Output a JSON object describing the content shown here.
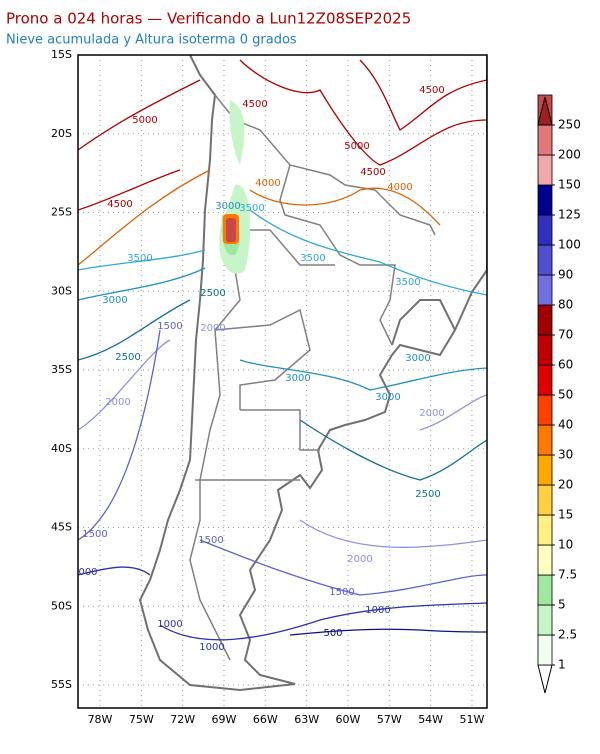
{
  "header": {
    "title": "Prono a 024 horas — Verificando a Lun12Z08SEP2025",
    "subtitle": "Nieve acumulada y Altura isoterma 0 grados"
  },
  "map": {
    "lat_labels": [
      "15S",
      "20S",
      "25S",
      "30S",
      "35S",
      "40S",
      "45S",
      "50S",
      "55S"
    ],
    "lon_labels": [
      "78W",
      "75W",
      "72W",
      "69W",
      "66W",
      "63W",
      "60W",
      "57W",
      "54W",
      "51W"
    ],
    "contour_labels": [
      {
        "text": "4500",
        "color": "#b00000"
      },
      {
        "text": "5000",
        "color": "#b00000"
      },
      {
        "text": "4500",
        "color": "#b00000"
      },
      {
        "text": "5000",
        "color": "#b00000"
      },
      {
        "text": "4500",
        "color": "#b00000"
      },
      {
        "text": "4000",
        "color": "#e06000"
      },
      {
        "text": "4000",
        "color": "#e06000"
      },
      {
        "text": "4500",
        "color": "#b00000"
      },
      {
        "text": "3000",
        "color": "#2090c0"
      },
      {
        "text": "3500",
        "color": "#30a8d8"
      },
      {
        "text": "3500",
        "color": "#30a8d8"
      },
      {
        "text": "3500",
        "color": "#30a8d8"
      },
      {
        "text": "3500",
        "color": "#30a8d8"
      },
      {
        "text": "3000",
        "color": "#2090c0"
      },
      {
        "text": "2500",
        "color": "#107090"
      },
      {
        "text": "1500",
        "color": "#6060d0"
      },
      {
        "text": "2000",
        "color": "#9090e0"
      },
      {
        "text": "2500",
        "color": "#107090"
      },
      {
        "text": "3000",
        "color": "#2090c0"
      },
      {
        "text": "3000",
        "color": "#2090c0"
      },
      {
        "text": "3000",
        "color": "#2090c0"
      },
      {
        "text": "2000",
        "color": "#9090e0"
      },
      {
        "text": "2000",
        "color": "#9090e0"
      },
      {
        "text": "2500",
        "color": "#107090"
      },
      {
        "text": "1500",
        "color": "#6060d0"
      },
      {
        "text": "1500",
        "color": "#6060d0"
      },
      {
        "text": "2000",
        "color": "#9090e0"
      },
      {
        "text": "000",
        "color": "#3030b0"
      },
      {
        "text": "1500",
        "color": "#6060d0"
      },
      {
        "text": "1000",
        "color": "#3030b0"
      },
      {
        "text": "500",
        "color": "#101080"
      },
      {
        "text": "1000",
        "color": "#3030b0"
      },
      {
        "text": "1000",
        "color": "#3030b0"
      }
    ]
  },
  "colorbar": {
    "labels": [
      1,
      2.5,
      5,
      7.5,
      10,
      15,
      20,
      30,
      40,
      50,
      60,
      70,
      80,
      90,
      100,
      125,
      150,
      200,
      250
    ],
    "under_color": "#ffffff",
    "colors": [
      "#f0fff0",
      "#c8f5c8",
      "#a0e8a0",
      "#ffffc0",
      "#fff080",
      "#ffd040",
      "#ffa800",
      "#ff7800",
      "#ff4000",
      "#e00000",
      "#c00000",
      "#a00000",
      "#7070e0",
      "#5050d0",
      "#3030c0",
      "#000090",
      "#f0a8a8",
      "#e07878",
      "#c84848"
    ],
    "over_color": "#a02020"
  }
}
